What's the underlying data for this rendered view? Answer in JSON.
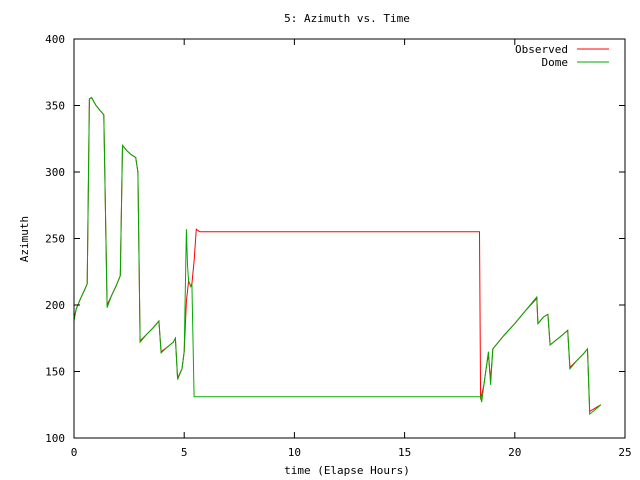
{
  "chart_data": {
    "type": "line",
    "title": "5: Azimuth vs. Time",
    "xlabel": "time (Elapse Hours)",
    "ylabel": "Azimuth",
    "xlim": [
      0,
      25
    ],
    "ylim": [
      100,
      400
    ],
    "xticks": [
      0,
      5,
      10,
      15,
      20,
      25
    ],
    "yticks": [
      100,
      150,
      200,
      250,
      300,
      350,
      400
    ],
    "grid": false,
    "legend_position": "top-right",
    "series": [
      {
        "name": "Observed",
        "color": "#ff0000",
        "points": [
          [
            0,
            190
          ],
          [
            0.1,
            197
          ],
          [
            0.3,
            205
          ],
          [
            0.5,
            212
          ],
          [
            0.6,
            216
          ],
          [
            0.7,
            355
          ],
          [
            0.8,
            356
          ],
          [
            1.0,
            350
          ],
          [
            1.2,
            346
          ],
          [
            1.35,
            343
          ],
          [
            1.5,
            200
          ],
          [
            1.7,
            207
          ],
          [
            1.9,
            214
          ],
          [
            2.1,
            222
          ],
          [
            2.2,
            320
          ],
          [
            2.4,
            316
          ],
          [
            2.6,
            313
          ],
          [
            2.8,
            311
          ],
          [
            2.9,
            300
          ],
          [
            3.0,
            173
          ],
          [
            3.3,
            178
          ],
          [
            3.6,
            183
          ],
          [
            3.85,
            188
          ],
          [
            3.95,
            165
          ],
          [
            4.2,
            168
          ],
          [
            4.5,
            172
          ],
          [
            4.6,
            175
          ],
          [
            4.7,
            145
          ],
          [
            4.9,
            152
          ],
          [
            5.0,
            165
          ],
          [
            5.1,
            203
          ],
          [
            5.2,
            218
          ],
          [
            5.3,
            214
          ],
          [
            5.35,
            216
          ],
          [
            5.45,
            233
          ],
          [
            5.55,
            257
          ],
          [
            5.7,
            255
          ],
          [
            18.4,
            255
          ],
          [
            18.45,
            129
          ],
          [
            18.6,
            140
          ],
          [
            18.7,
            152
          ],
          [
            18.8,
            163
          ],
          [
            18.9,
            143
          ],
          [
            19.0,
            167
          ],
          [
            19.5,
            177
          ],
          [
            20.0,
            186
          ],
          [
            20.5,
            196
          ],
          [
            21.0,
            205
          ],
          [
            21.05,
            186
          ],
          [
            21.3,
            191
          ],
          [
            21.5,
            193
          ],
          [
            21.6,
            170
          ],
          [
            21.9,
            174
          ],
          [
            22.2,
            178
          ],
          [
            22.4,
            181
          ],
          [
            22.5,
            153
          ],
          [
            22.8,
            158
          ],
          [
            23.1,
            163
          ],
          [
            23.3,
            167
          ],
          [
            23.4,
            120
          ],
          [
            23.7,
            123
          ],
          [
            23.9,
            125
          ]
        ]
      },
      {
        "name": "Dome",
        "color": "#00aa00",
        "points": [
          [
            0,
            188
          ],
          [
            0.1,
            197
          ],
          [
            0.3,
            205
          ],
          [
            0.5,
            212
          ],
          [
            0.6,
            216
          ],
          [
            0.7,
            355
          ],
          [
            0.8,
            356
          ],
          [
            1.0,
            350
          ],
          [
            1.2,
            346
          ],
          [
            1.35,
            343
          ],
          [
            1.5,
            198
          ],
          [
            1.7,
            207
          ],
          [
            1.9,
            214
          ],
          [
            2.1,
            222
          ],
          [
            2.2,
            320
          ],
          [
            2.4,
            316
          ],
          [
            2.6,
            313
          ],
          [
            2.8,
            311
          ],
          [
            2.9,
            300
          ],
          [
            3.0,
            172
          ],
          [
            3.3,
            178
          ],
          [
            3.6,
            183
          ],
          [
            3.85,
            188
          ],
          [
            3.95,
            164
          ],
          [
            4.2,
            168
          ],
          [
            4.5,
            172
          ],
          [
            4.6,
            175
          ],
          [
            4.7,
            144
          ],
          [
            4.9,
            152
          ],
          [
            5.0,
            165
          ],
          [
            5.1,
            257
          ],
          [
            5.15,
            230
          ],
          [
            5.2,
            218
          ],
          [
            5.3,
            214
          ],
          [
            5.35,
            216
          ],
          [
            5.45,
            131
          ],
          [
            18.45,
            131
          ],
          [
            18.5,
            127
          ],
          [
            18.6,
            140
          ],
          [
            18.7,
            152
          ],
          [
            18.8,
            165
          ],
          [
            18.9,
            140
          ],
          [
            19.0,
            167
          ],
          [
            19.5,
            177
          ],
          [
            20.0,
            186
          ],
          [
            20.5,
            196
          ],
          [
            21.0,
            206
          ],
          [
            21.05,
            186
          ],
          [
            21.3,
            191
          ],
          [
            21.5,
            193
          ],
          [
            21.6,
            170
          ],
          [
            21.9,
            174
          ],
          [
            22.2,
            178
          ],
          [
            22.4,
            181
          ],
          [
            22.5,
            152
          ],
          [
            22.8,
            158
          ],
          [
            23.1,
            163
          ],
          [
            23.3,
            167
          ],
          [
            23.4,
            118
          ],
          [
            23.7,
            122
          ],
          [
            23.9,
            125
          ]
        ]
      }
    ]
  }
}
